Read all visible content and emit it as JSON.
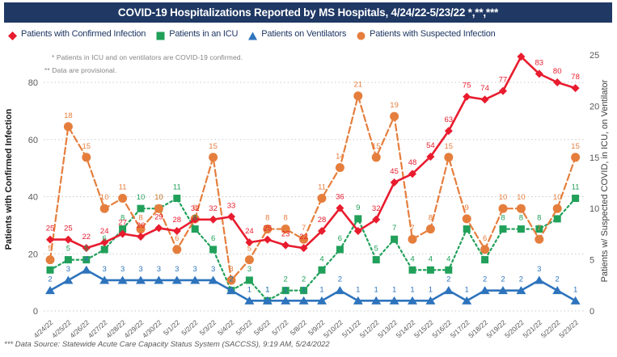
{
  "title": "COVID-19 Hospitalizations Reported by MS Hospitals, 4/24/22-5/23/22 *,**,***",
  "annotations": [
    "* Patients in ICU and on ventilators are COVID-19 confirmed.",
    "** Data are provisional."
  ],
  "footer": "*** Data Source: Statewide Acute Care Capacity Status System (SACCSS), 9:19 AM, 5/24/2022",
  "colors": {
    "titlebar": "#1f3864",
    "legend_text": "#1f3864",
    "grid": "#c9c9c9",
    "tick_text": "#595959",
    "note_text": "#848484",
    "confirmed_red": "#e81c2e",
    "icu_green": "#21a05a",
    "ventilator_blue": "#2e74bd",
    "suspected_orange": "#e57e3d"
  },
  "legend": [
    {
      "label": "Patients with Confirmed Infection",
      "marker": "diamond",
      "color": "#e81c2e"
    },
    {
      "label": "Patients in an ICU",
      "marker": "square",
      "color": "#21a05a"
    },
    {
      "label": "Patients on Ventilators",
      "marker": "triangle",
      "color": "#2e74bd"
    },
    {
      "label": "Patients with Suspected Infection",
      "marker": "circle",
      "color": "#e57e3d"
    }
  ],
  "chart_data": {
    "type": "line",
    "x": [
      "4/24/22",
      "4/25/22",
      "4/26/22",
      "4/27/22",
      "4/28/22",
      "4/29/22",
      "4/30/22",
      "5/1/22",
      "5/2/22",
      "5/3/22",
      "5/4/22",
      "5/5/22",
      "5/6/22",
      "5/7/22",
      "5/8/22",
      "5/9/22",
      "5/10/22",
      "5/11/22",
      "5/12/22",
      "5/13/22",
      "5/14/22",
      "5/15/22",
      "5/16/22",
      "5/17/22",
      "5/18/22",
      "5/19/22",
      "5/20/22",
      "5/21/22",
      "5/22/22",
      "5/23/22"
    ],
    "left_axis": {
      "title": "Patients with Confirmed Infection",
      "ticks": [
        0,
        20,
        40,
        60,
        80
      ],
      "range": [
        0,
        92
      ]
    },
    "right_axis": {
      "title": "Patients w/ Suspected COVID, in ICU, on Ventilator",
      "ticks": [
        0,
        5,
        10,
        15,
        20,
        25
      ],
      "range": [
        0,
        26
      ]
    },
    "grid": "dotted-horizontal",
    "legend_position": "top",
    "series": [
      {
        "name": "Patients with Confirmed Infection",
        "axis": "left",
        "color": "#e81c2e",
        "marker": "diamond",
        "line": "solid",
        "values": [
          25,
          25,
          22,
          24,
          27,
          26,
          29,
          28,
          32,
          32,
          33,
          24,
          25,
          23,
          22,
          28,
          36,
          28,
          32,
          45,
          48,
          54,
          63,
          75,
          74,
          77,
          89,
          83,
          80,
          78
        ],
        "labels": [
          25,
          25,
          22,
          24,
          27,
          26,
          29,
          28,
          32,
          32,
          33,
          24,
          25,
          23,
          22,
          28,
          36,
          null,
          32,
          45,
          48,
          54,
          63,
          75,
          74,
          77,
          null,
          83,
          80,
          78
        ]
      },
      {
        "name": "Patients in an ICU",
        "axis": "right",
        "color": "#21a05a",
        "marker": "square",
        "line": "dotted",
        "values": [
          4,
          5,
          5,
          6,
          8,
          10,
          10,
          11,
          8,
          6,
          2,
          3,
          1,
          2,
          2,
          4,
          6,
          9,
          5,
          7,
          4,
          4,
          4,
          8,
          5,
          8,
          8,
          8,
          9,
          11
        ],
        "labels": [
          null,
          5,
          5,
          6,
          8,
          10,
          10,
          11,
          8,
          6,
          2,
          3,
          1,
          2,
          2,
          4,
          6,
          9,
          5,
          7,
          4,
          4,
          4,
          null,
          null,
          8,
          8,
          8,
          null,
          11
        ]
      },
      {
        "name": "Patients on Ventilators",
        "axis": "right",
        "color": "#2e74bd",
        "marker": "triangle",
        "line": "solid",
        "values": [
          2,
          3,
          4,
          3,
          3,
          3,
          3,
          3,
          3,
          3,
          2,
          1,
          1,
          1,
          1,
          1,
          2,
          1,
          1,
          1,
          1,
          1,
          2,
          1,
          2,
          2,
          2,
          3,
          2,
          1
        ],
        "labels": [
          2,
          3,
          4,
          3,
          3,
          3,
          3,
          3,
          3,
          3,
          2,
          1,
          1,
          1,
          1,
          1,
          2,
          1,
          1,
          1,
          1,
          1,
          2,
          1,
          2,
          2,
          2,
          3,
          2,
          1
        ]
      },
      {
        "name": "Patients with Suspected Infection",
        "axis": "right",
        "color": "#e57e3d",
        "marker": "circle",
        "line": "dashed",
        "values": [
          5,
          18,
          15,
          10,
          11,
          8,
          10,
          6,
          9,
          15,
          3,
          5,
          8,
          8,
          7,
          11,
          14,
          21,
          15,
          19,
          7,
          8,
          15,
          9,
          6,
          10,
          10,
          7,
          10,
          15
        ],
        "labels": [
          5,
          18,
          15,
          10,
          11,
          8,
          10,
          6,
          9,
          15,
          3,
          5,
          8,
          8,
          7,
          11,
          14,
          21,
          15,
          19,
          7,
          8,
          15,
          9,
          6,
          10,
          10,
          7,
          10,
          15
        ]
      }
    ]
  }
}
